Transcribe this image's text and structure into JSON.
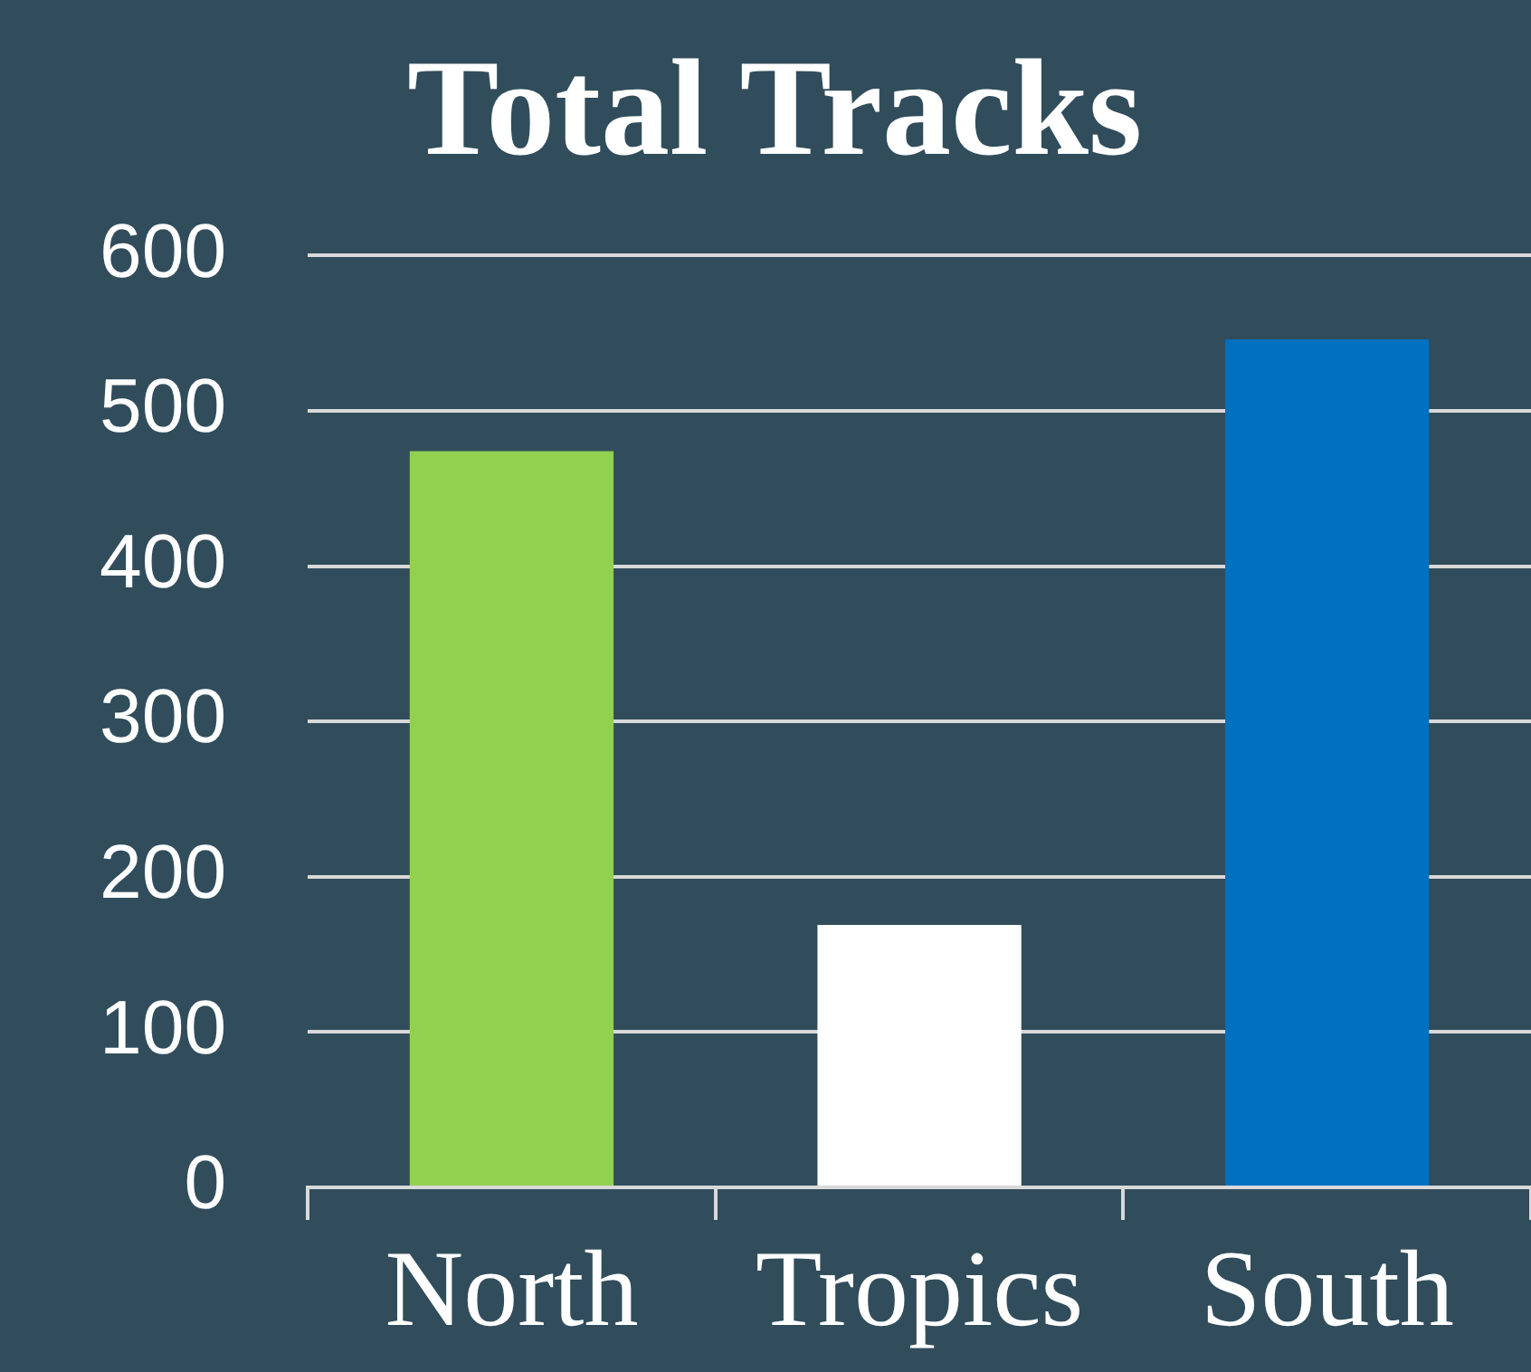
{
  "chart_data": {
    "type": "bar",
    "title": "Total Tracks",
    "categories": [
      "North",
      "Tropics",
      "South"
    ],
    "values": [
      474,
      169,
      546
    ],
    "colors": [
      "#92d050",
      "#ffffff",
      "#0070c0"
    ],
    "ylim": [
      0,
      600
    ],
    "yticks": [
      0,
      100,
      200,
      300,
      400,
      500,
      600
    ],
    "grid": "y",
    "legend": false
  }
}
